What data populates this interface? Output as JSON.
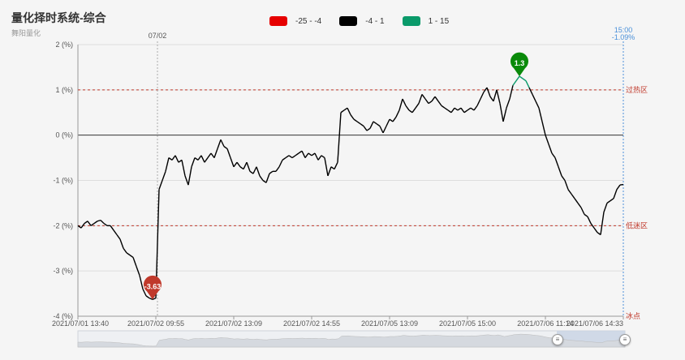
{
  "title": "量化择时系统-综合",
  "subtitle": "舞阳量化",
  "legend": [
    {
      "label": "-25 - -4",
      "color": "#e60000"
    },
    {
      "label": "-4 - 1",
      "color": "#000000"
    },
    {
      "label": "1 - 15",
      "color": "#0a9a6a"
    }
  ],
  "chart_data": {
    "type": "line",
    "y_ticks": [
      "2 (%)",
      "1 (%)",
      "0 (%)",
      "-1 (%)",
      "-2 (%)",
      "-3 (%)",
      "-4 (%)"
    ],
    "ylim": [
      -4,
      2
    ],
    "x_ticks": [
      "2021/07/01 13:40",
      "2021/07/02 09:55",
      "2021/07/02 13:09",
      "2021/07/02 14:55",
      "2021/07/05 13:09",
      "2021/07/05 15:00",
      "2021/07/06 11:14",
      "2021/07/06 14:33"
    ],
    "day_marker_label": "07/02",
    "end_label_time": "15:00",
    "end_label_value": "-1.09%",
    "zone_lines": [
      {
        "value": 1,
        "label": "过热区"
      },
      {
        "value": -2,
        "label": "低迷区"
      },
      {
        "value": -4,
        "label": "冰点"
      }
    ],
    "pins": [
      {
        "label": "-3.63",
        "value": -3.63,
        "color": "#c0392b"
      },
      {
        "label": "1.3",
        "value": 1.3,
        "color": "#0a8a0a"
      }
    ],
    "series": [
      {
        "values": [
          -2.0,
          -2.05,
          -1.95,
          -1.9,
          -2.0,
          -1.95,
          -1.9,
          -1.88,
          -1.95,
          -2.0,
          -2.0,
          -2.1,
          -2.2,
          -2.3,
          -2.5,
          -2.6,
          -2.65,
          -2.7,
          -2.9,
          -3.1,
          -3.4,
          -3.55,
          -3.6,
          -3.63,
          -3.6,
          -1.2,
          -1.0,
          -0.8,
          -0.5,
          -0.55,
          -0.45,
          -0.6,
          -0.55,
          -0.9,
          -1.1,
          -0.7,
          -0.5,
          -0.55,
          -0.45,
          -0.6,
          -0.5,
          -0.4,
          -0.5,
          -0.3,
          -0.1,
          -0.25,
          -0.3,
          -0.5,
          -0.7,
          -0.6,
          -0.7,
          -0.75,
          -0.6,
          -0.8,
          -0.85,
          -0.7,
          -0.9,
          -1.0,
          -1.05,
          -0.85,
          -0.8,
          -0.8,
          -0.7,
          -0.55,
          -0.5,
          -0.45,
          -0.5,
          -0.45,
          -0.4,
          -0.35,
          -0.5,
          -0.4,
          -0.45,
          -0.4,
          -0.55,
          -0.45,
          -0.5,
          -0.9,
          -0.7,
          -0.75,
          -0.6,
          0.5,
          0.55,
          0.6,
          0.45,
          0.35,
          0.3,
          0.25,
          0.2,
          0.1,
          0.15,
          0.3,
          0.25,
          0.2,
          0.05,
          0.2,
          0.35,
          0.3,
          0.4,
          0.55,
          0.8,
          0.65,
          0.55,
          0.5,
          0.6,
          0.7,
          0.9,
          0.8,
          0.7,
          0.75,
          0.85,
          0.75,
          0.65,
          0.6,
          0.55,
          0.5,
          0.6,
          0.55,
          0.6,
          0.5,
          0.55,
          0.6,
          0.55,
          0.65,
          0.8,
          0.95,
          1.05,
          0.85,
          0.75,
          1.0,
          0.7,
          0.3,
          0.6,
          0.8,
          1.1,
          1.2,
          1.3,
          1.25,
          1.2,
          1.05,
          0.9,
          0.75,
          0.6,
          0.3,
          0.0,
          -0.2,
          -0.4,
          -0.5,
          -0.7,
          -0.9,
          -1.0,
          -1.2,
          -1.3,
          -1.4,
          -1.5,
          -1.6,
          -1.75,
          -1.8,
          -1.95,
          -2.05,
          -2.15,
          -2.2,
          -1.7,
          -1.5,
          -1.45,
          -1.4,
          -1.2,
          -1.1,
          -1.09
        ]
      }
    ]
  },
  "slider_handle_left": "≡",
  "slider_handle_right": "≡"
}
